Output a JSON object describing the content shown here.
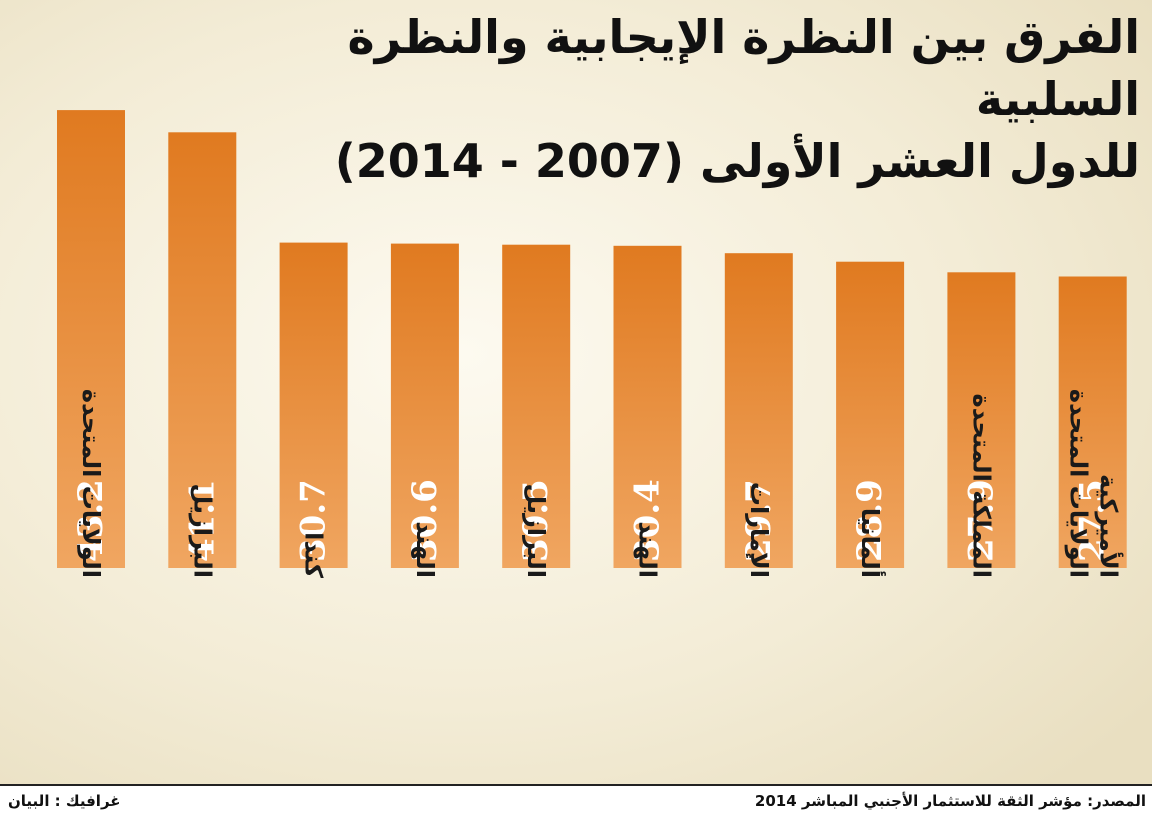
{
  "title": {
    "line1": "الفرق بين النظرة الإيجابية والنظرة السلبية",
    "line2": "للدول العشر الأولى (2007 - 2014)"
  },
  "chart_data": {
    "type": "bar",
    "categories": [
      "الولايات المتحدة",
      "البرازيل",
      "كندا",
      "الهند",
      "البرازيل",
      "الهند",
      "الإمارات",
      "ألمانيا",
      "المملكة المتحدة",
      "الولايات المتحدة الأميركية"
    ],
    "values": [
      43.2,
      41.1,
      30.7,
      30.6,
      30.5,
      30.4,
      29.7,
      28.9,
      27.9,
      27.5
    ],
    "ylim": [
      0,
      45
    ],
    "data_labels": true,
    "grid": false,
    "bar_color_top": "#e07a20",
    "bar_color_bottom": "#f0a661"
  },
  "footer": {
    "source": "المصدر: مؤشر الثقة للاستثمار الأجنبي المباشر 2014",
    "credit": "غرافيك : البيان"
  }
}
